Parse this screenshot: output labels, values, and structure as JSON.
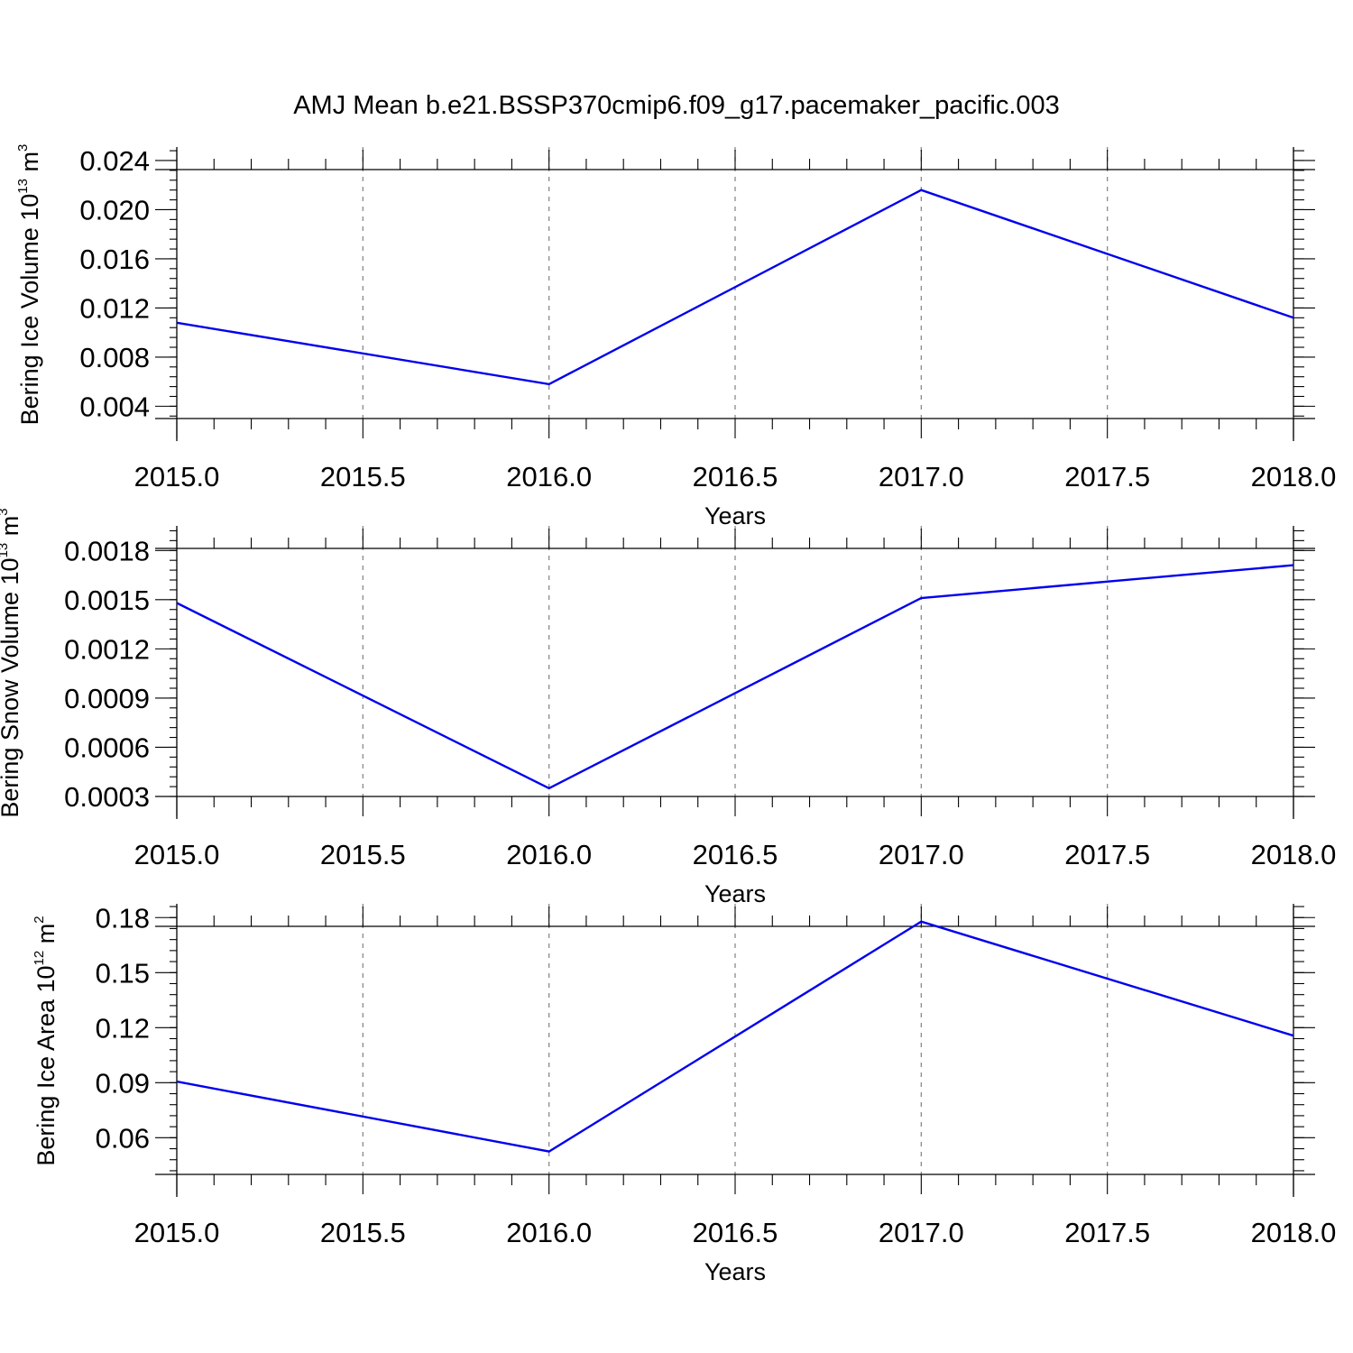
{
  "title": "AMJ Mean b.e21.BSSP370cmip6.f09_g17.pacemaker_pacific.003",
  "colors": {
    "series": "#0000ee",
    "grid": "#8a8a8a",
    "axis": "#000000"
  },
  "chart_data": [
    {
      "type": "line",
      "xlabel": "Years",
      "ylabel": {
        "text": "Bering Ice Volume 10",
        "sup": "13",
        "unit": " m",
        "unit_sup": "3"
      },
      "xlim": [
        2015.0,
        2018.0
      ],
      "ylim": [
        0.003,
        0.0251
      ],
      "x_ticks": [
        2015.0,
        2015.5,
        2016.0,
        2016.5,
        2017.0,
        2017.5,
        2018.0
      ],
      "x_tick_labels": [
        "2015.0",
        "2015.5",
        "2016.0",
        "2016.5",
        "2017.0",
        "2017.5",
        "2018.0"
      ],
      "y_ticks": [
        0.004,
        0.008,
        0.012,
        0.016,
        0.02,
        0.024
      ],
      "y_tick_labels": [
        "0.004",
        "0.008",
        "0.012",
        "0.016",
        "0.020",
        "0.024"
      ],
      "grid": "vertical-dashed",
      "x": [
        2015.0,
        2016.0,
        2017.0,
        2018.0
      ],
      "values": [
        0.0108,
        0.0058,
        0.0216,
        0.0112
      ]
    },
    {
      "type": "line",
      "xlabel": "Years",
      "ylabel": {
        "text": "Bering Snow Volume 10",
        "sup": "13",
        "unit": " m",
        "unit_sup": "3"
      },
      "xlim": [
        2015.0,
        2018.0
      ],
      "ylim": [
        0.0003,
        0.00195
      ],
      "x_ticks": [
        2015.0,
        2015.5,
        2016.0,
        2016.5,
        2017.0,
        2017.5,
        2018.0
      ],
      "x_tick_labels": [
        "2015.0",
        "2015.5",
        "2016.0",
        "2016.5",
        "2017.0",
        "2017.5",
        "2018.0"
      ],
      "y_ticks": [
        0.0003,
        0.0006,
        0.0009,
        0.0012,
        0.0015,
        0.0018
      ],
      "y_tick_labels": [
        "0.0003",
        "0.0006",
        "0.0009",
        "0.0012",
        "0.0015",
        "0.0018"
      ],
      "grid": "vertical-dashed",
      "x": [
        2015.0,
        2016.0,
        2017.0,
        2018.0
      ],
      "values": [
        0.00148,
        0.00035,
        0.00151,
        0.00171
      ]
    },
    {
      "type": "line",
      "xlabel": "Years",
      "ylabel": {
        "text": "Bering Ice Area 10",
        "sup": "12",
        "unit": " m",
        "unit_sup": "2"
      },
      "xlim": [
        2015.0,
        2018.0
      ],
      "ylim": [
        0.04,
        0.1875
      ],
      "x_ticks": [
        2015.0,
        2015.5,
        2016.0,
        2016.5,
        2017.0,
        2017.5,
        2018.0
      ],
      "x_tick_labels": [
        "2015.0",
        "2015.5",
        "2016.0",
        "2016.5",
        "2017.0",
        "2017.5",
        "2018.0"
      ],
      "y_ticks": [
        0.06,
        0.09,
        0.12,
        0.15,
        0.18
      ],
      "y_tick_labels": [
        "0.06",
        "0.09",
        "0.12",
        "0.15",
        "0.18"
      ],
      "grid": "vertical-dashed",
      "x": [
        2015.0,
        2016.0,
        2017.0,
        2018.0
      ],
      "values": [
        0.0906,
        0.0525,
        0.1778,
        0.1156
      ]
    }
  ]
}
